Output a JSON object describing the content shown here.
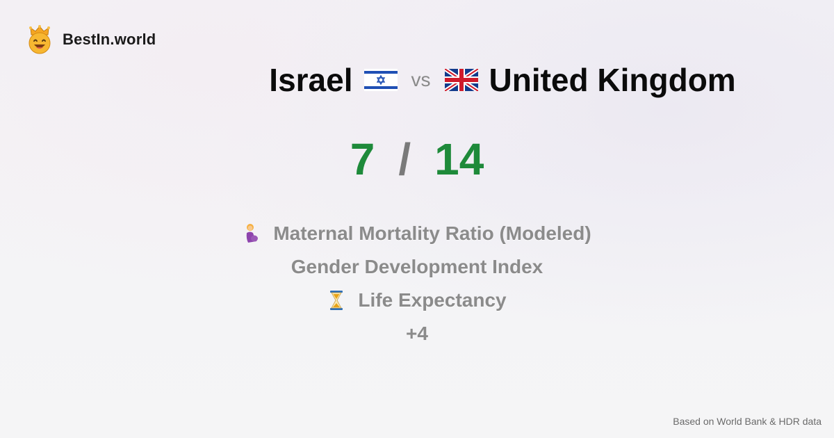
{
  "brand": {
    "name": "BestIn.world",
    "logo_icon": "smiling-crown-face-icon"
  },
  "comparison": {
    "left_country": "Israel",
    "left_flag": "israel-flag-icon",
    "vs_label": "vs",
    "right_country": "United Kingdom",
    "right_flag": "united-kingdom-flag-icon"
  },
  "score": {
    "left": "7",
    "separator": "/",
    "right": "14",
    "color": "#1e8a3a"
  },
  "metrics": [
    {
      "label": "Maternal Mortality Ratio (Modeled)",
      "icon": "pregnant-woman-icon"
    },
    {
      "label": "Gender Development Index",
      "icon": ""
    },
    {
      "label": "Life Expectancy",
      "icon": "hourglass-icon"
    }
  ],
  "more_label": "+4",
  "footer": {
    "source": "Based on World Bank & HDR data"
  }
}
